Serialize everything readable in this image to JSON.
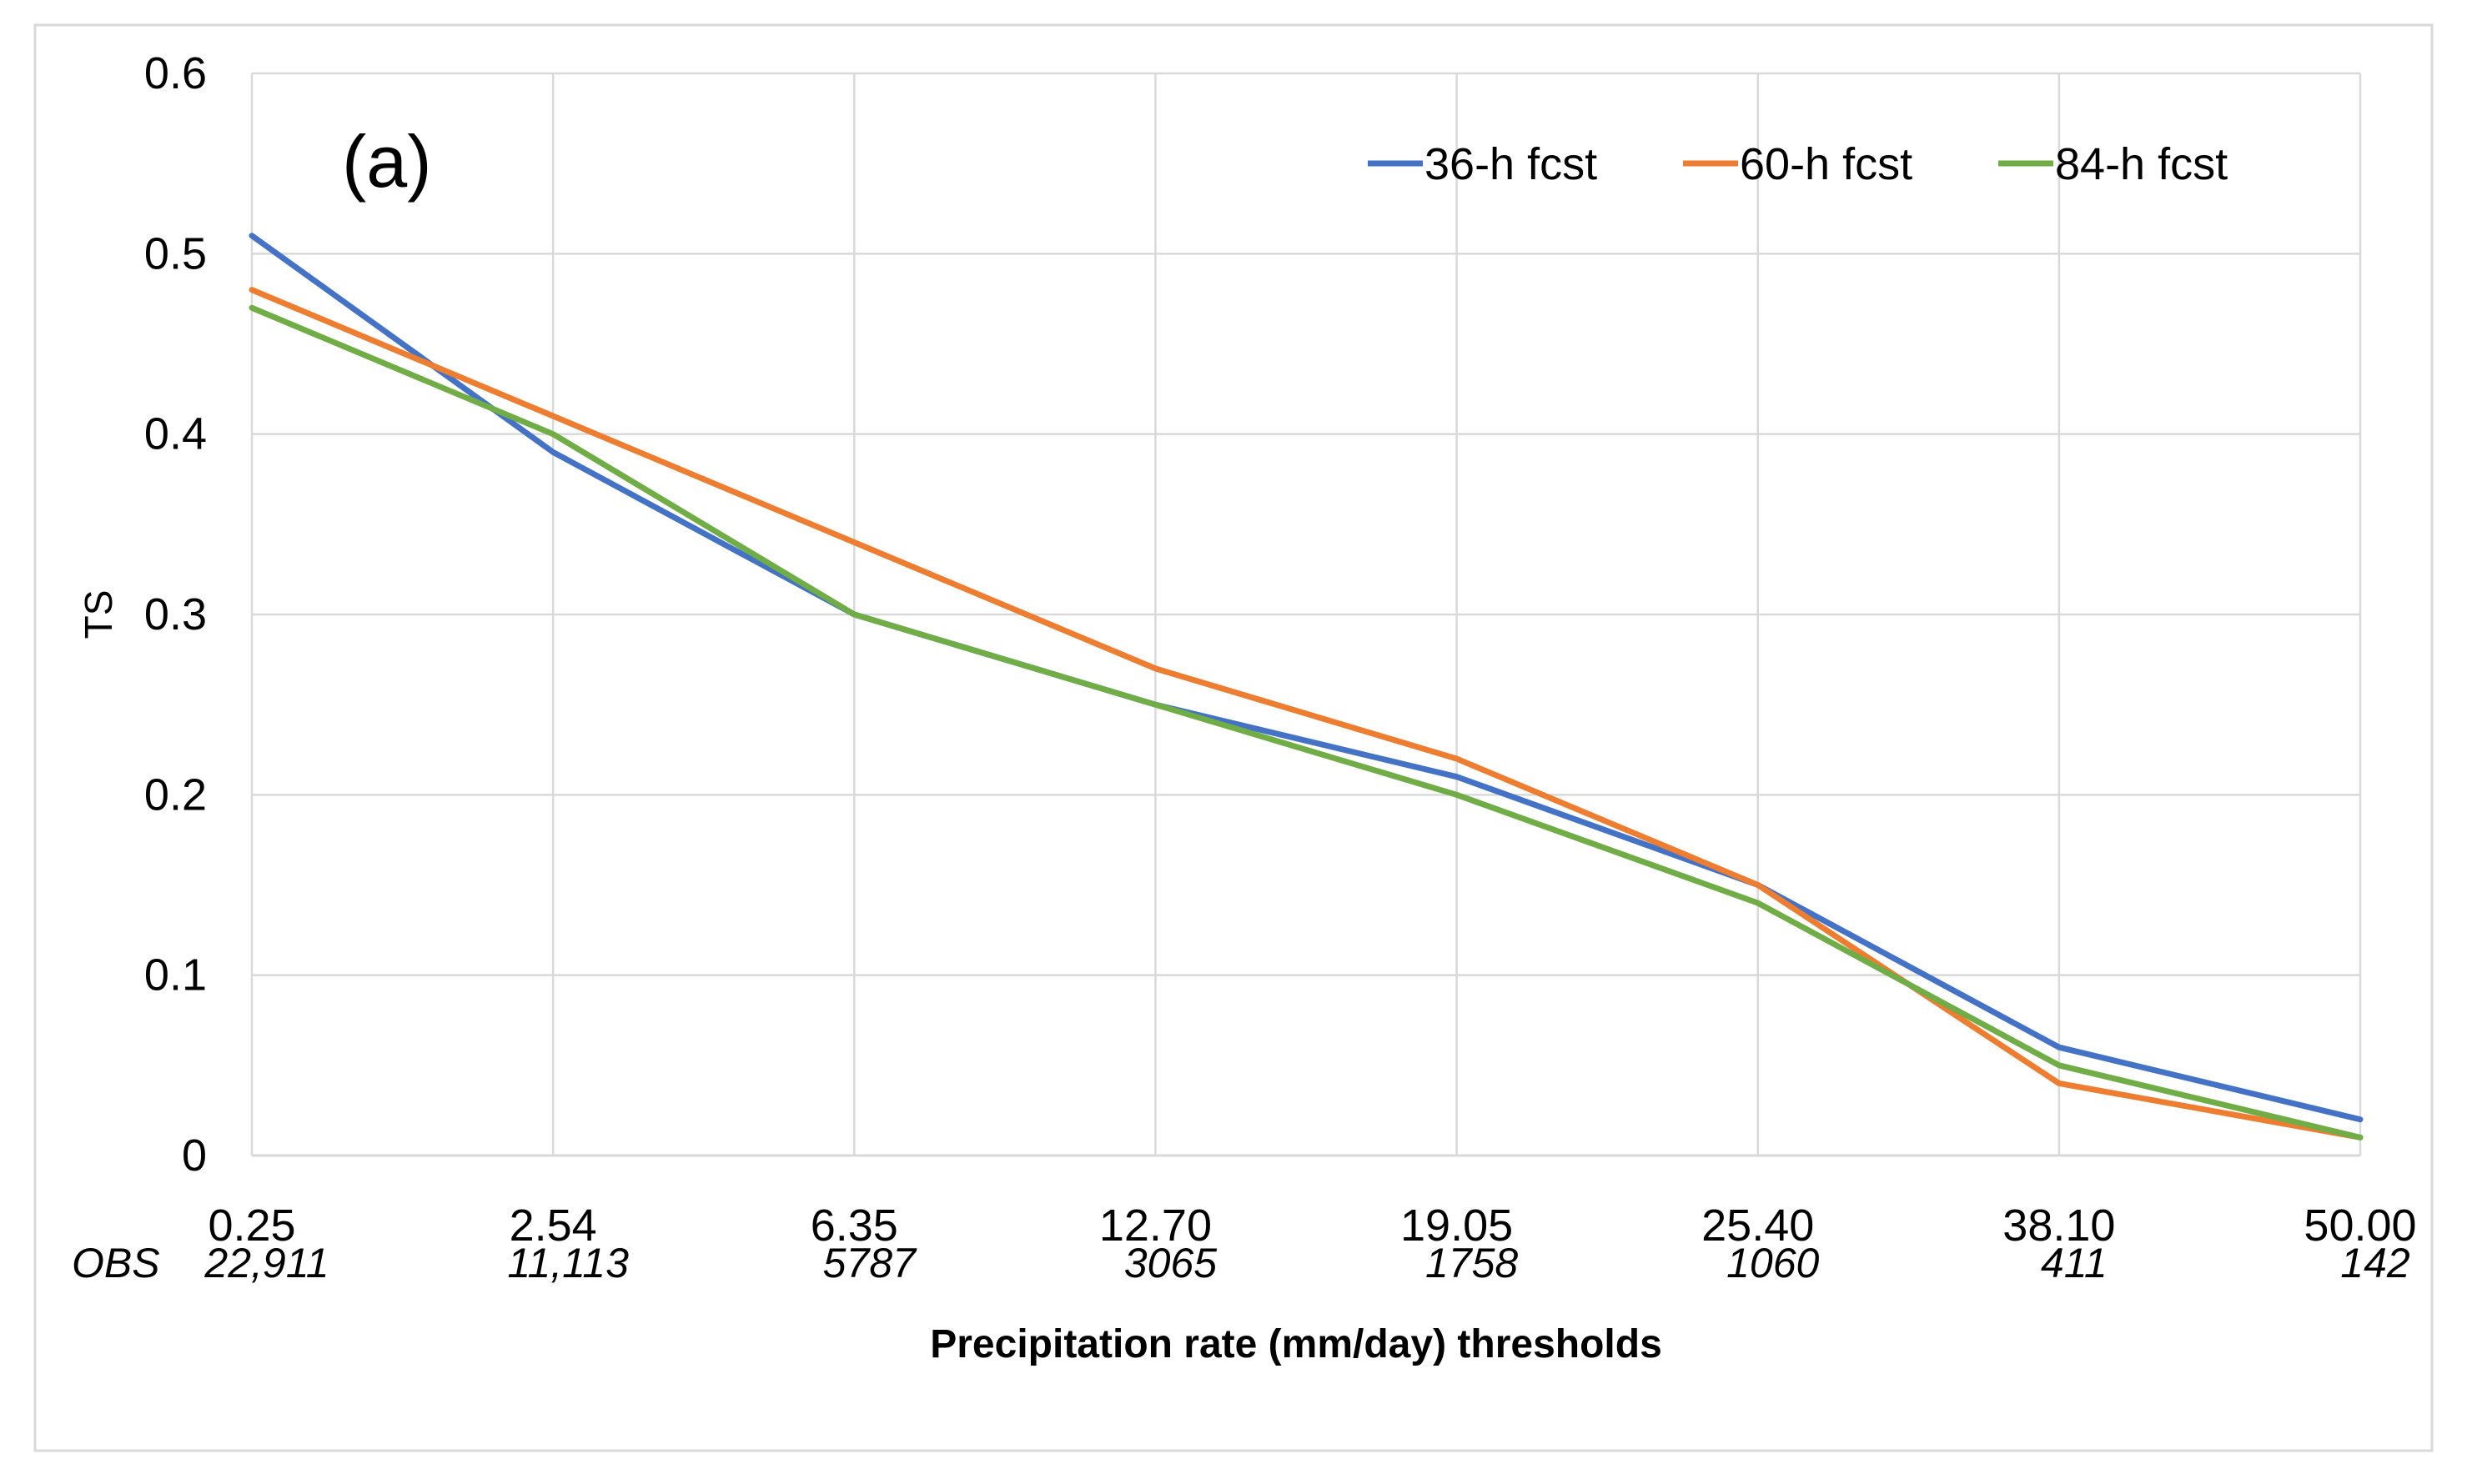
{
  "chart_data": {
    "type": "line",
    "panel_label": "(a)",
    "categories": [
      "0.25",
      "2.54",
      "6.35",
      "12.70",
      "19.05",
      "25.40",
      "38.10",
      "50.00"
    ],
    "obs_label": "OBS",
    "obs_counts": [
      "22,911",
      "11,113",
      "5787",
      "3065",
      "1758",
      "1060",
      "411",
      "142"
    ],
    "series": [
      {
        "name": "36-h fcst",
        "color": "#4472C4",
        "values": [
          0.51,
          0.39,
          0.3,
          0.25,
          0.21,
          0.15,
          0.06,
          0.02
        ]
      },
      {
        "name": "60-h fcst",
        "color": "#ED7D31",
        "values": [
          0.48,
          0.41,
          0.34,
          0.27,
          0.22,
          0.15,
          0.04,
          0.01
        ]
      },
      {
        "name": "84-h fcst",
        "color": "#70AD47",
        "values": [
          0.47,
          0.4,
          0.3,
          0.25,
          0.2,
          0.14,
          0.05,
          0.01
        ]
      }
    ],
    "y_ticks": [
      0,
      0.1,
      0.2,
      0.3,
      0.4,
      0.5,
      0.6
    ],
    "y_tick_labels": [
      "0",
      "0.1",
      "0.2",
      "0.3",
      "0.4",
      "0.5",
      "0.6"
    ],
    "ylim": [
      0,
      0.6
    ],
    "xlabel": "Precipitation rate (mm/day) thresholds",
    "ylabel": "TS",
    "grid": true,
    "legend_position": "top-right"
  }
}
